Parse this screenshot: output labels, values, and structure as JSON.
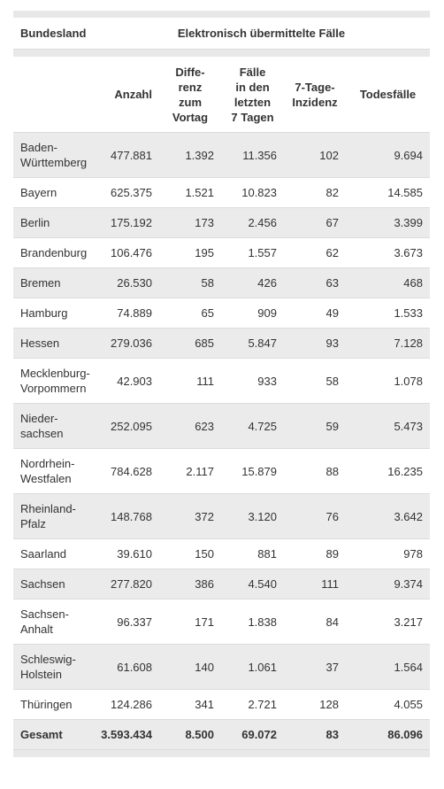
{
  "table": {
    "header": [
      "Bundesland",
      "Elektronisch übermittelte Fälle"
    ],
    "columns": [
      "Anzahl",
      "Diffe-\nrenz\nzum\nVortag",
      "Fälle\nin den\nletzten\n7 Tagen",
      "7-Tage-\nInzidenz",
      "Todesfälle"
    ],
    "rows": [
      [
        "Baden-\nWürttemberg",
        "477.881",
        "1.392",
        "11.356",
        "102",
        "9.694"
      ],
      [
        "Bayern",
        "625.375",
        "1.521",
        "10.823",
        "82",
        "14.585"
      ],
      [
        "Berlin",
        "175.192",
        "173",
        "2.456",
        "67",
        "3.399"
      ],
      [
        "Brandenburg",
        "106.476",
        "195",
        "1.557",
        "62",
        "3.673"
      ],
      [
        "Bremen",
        "26.530",
        "58",
        "426",
        "63",
        "468"
      ],
      [
        "Hamburg",
        "74.889",
        "65",
        "909",
        "49",
        "1.533"
      ],
      [
        "Hessen",
        "279.036",
        "685",
        "5.847",
        "93",
        "7.128"
      ],
      [
        "Mecklenburg-\nVorpommern",
        "42.903",
        "111",
        "933",
        "58",
        "1.078"
      ],
      [
        "Nieder-\nsachsen",
        "252.095",
        "623",
        "4.725",
        "59",
        "5.473"
      ],
      [
        "Nordrhein-\nWestfalen",
        "784.628",
        "2.117",
        "15.879",
        "88",
        "16.235"
      ],
      [
        "Rheinland-\nPfalz",
        "148.768",
        "372",
        "3.120",
        "76",
        "3.642"
      ],
      [
        "Saarland",
        "39.610",
        "150",
        "881",
        "89",
        "978"
      ],
      [
        "Sachsen",
        "277.820",
        "386",
        "4.540",
        "111",
        "9.374"
      ],
      [
        "Sachsen-\nAnhalt",
        "96.337",
        "171",
        "1.838",
        "84",
        "3.217"
      ],
      [
        "Schleswig-\nHolstein",
        "61.608",
        "140",
        "1.061",
        "37",
        "1.564"
      ],
      [
        "Thüringen",
        "124.286",
        "341",
        "2.721",
        "128",
        "4.055"
      ]
    ],
    "total": [
      "Gesamt",
      "3.593.434",
      "8.500",
      "69.072",
      "83",
      "86.096"
    ]
  }
}
